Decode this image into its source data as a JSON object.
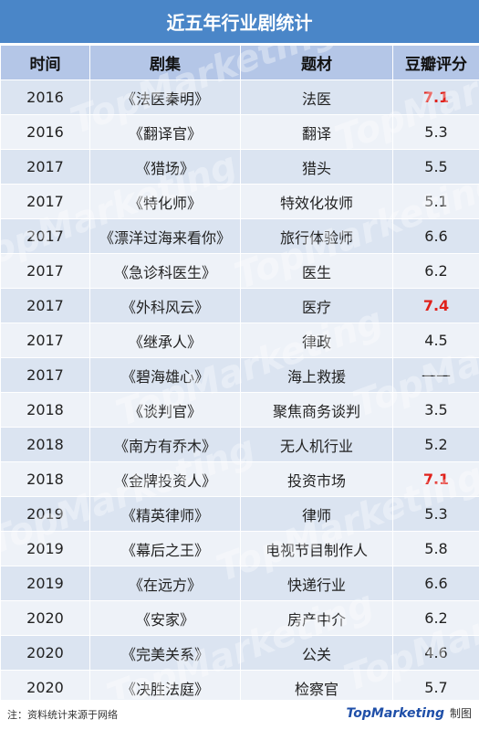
{
  "title": "近五年行业剧统计",
  "headers": [
    "时间",
    "剧集",
    "题材",
    "豆瓣评分"
  ],
  "rows": [
    {
      "year": "2016",
      "drama": "《法医秦明》",
      "genre": "法医",
      "score": "7.1",
      "highlight": true
    },
    {
      "year": "2016",
      "drama": "《翻译官》",
      "genre": "翻译",
      "score": "5.3",
      "highlight": false
    },
    {
      "year": "2017",
      "drama": "《猎场》",
      "genre": "猎头",
      "score": "5.5",
      "highlight": false
    },
    {
      "year": "2017",
      "drama": "《特化师》",
      "genre": "特效化妆师",
      "score": "5.1",
      "highlight": false
    },
    {
      "year": "2017",
      "drama": "《漂洋过海来看你》",
      "genre": "旅行体验师",
      "score": "6.6",
      "highlight": false
    },
    {
      "year": "2017",
      "drama": "《急诊科医生》",
      "genre": "医生",
      "score": "6.2",
      "highlight": false
    },
    {
      "year": "2017",
      "drama": "《外科风云》",
      "genre": "医疗",
      "score": "7.4",
      "highlight": true
    },
    {
      "year": "2017",
      "drama": "《继承人》",
      "genre": "律政",
      "score": "4.5",
      "highlight": false
    },
    {
      "year": "2017",
      "drama": "《碧海雄心》",
      "genre": "海上救援",
      "score": "——",
      "highlight": false
    },
    {
      "year": "2018",
      "drama": "《谈判官》",
      "genre": "聚焦商务谈判",
      "score": "3.5",
      "highlight": false
    },
    {
      "year": "2018",
      "drama": "《南方有乔木》",
      "genre": "无人机行业",
      "score": "5.2",
      "highlight": false
    },
    {
      "year": "2018",
      "drama": "《金牌投资人》",
      "genre": "投资市场",
      "score": "7.1",
      "highlight": true
    },
    {
      "year": "2019",
      "drama": "《精英律师》",
      "genre": "律师",
      "score": "5.3",
      "highlight": false
    },
    {
      "year": "2019",
      "drama": "《幕后之王》",
      "genre": "电视节目制作人",
      "score": "5.8",
      "highlight": false
    },
    {
      "year": "2019",
      "drama": "《在远方》",
      "genre": "快递行业",
      "score": "6.6",
      "highlight": false
    },
    {
      "year": "2020",
      "drama": "《安家》",
      "genre": "房产中介",
      "score": "6.2",
      "highlight": false
    },
    {
      "year": "2020",
      "drama": "《完美关系》",
      "genre": "公关",
      "score": "4.6",
      "highlight": false
    },
    {
      "year": "2020",
      "drama": "《决胜法庭》",
      "genre": "检察官",
      "score": "5.7",
      "highlight": false
    }
  ],
  "footer": {
    "note": "注：资料统计来源于网络",
    "brand": "TopMarketing",
    "brand_suffix": "制图"
  },
  "watermark_text": "TopMarketing",
  "colors": {
    "title_bg": "#4a86c8",
    "header_bg": "#b4c6e7",
    "row_odd": "#dbe4f1",
    "row_even": "#eef2f8",
    "highlight": "#e0211b"
  }
}
